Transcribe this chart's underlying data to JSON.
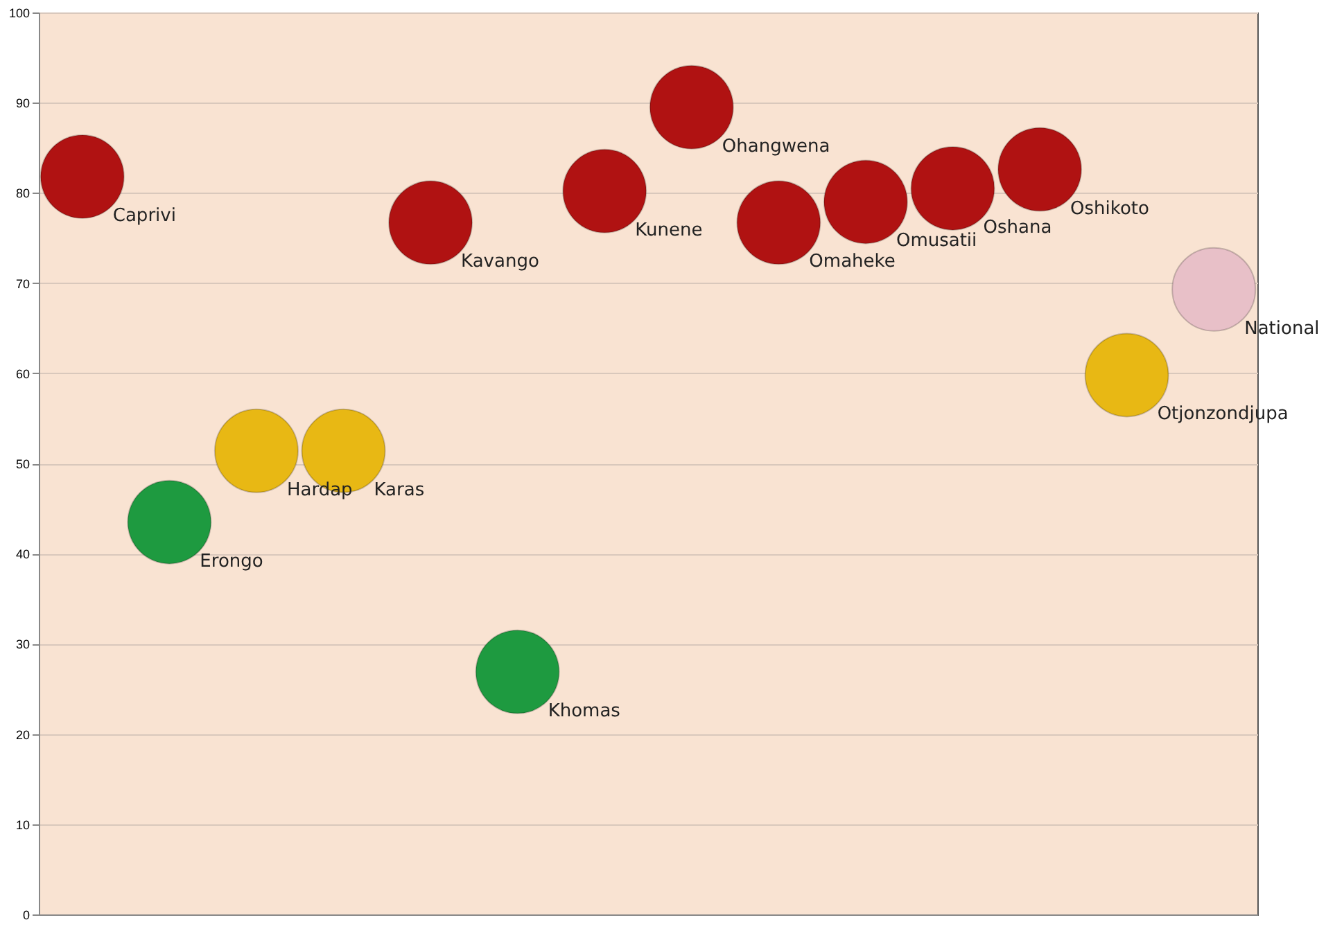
{
  "chart_data": {
    "type": "scatter",
    "categories": [
      null,
      null,
      null,
      null,
      null,
      null,
      null,
      null,
      null,
      null,
      null,
      null,
      null,
      null
    ],
    "ylim": [
      0,
      100
    ],
    "yticks": [
      0,
      10,
      20,
      30,
      40,
      50,
      60,
      70,
      80,
      90,
      100
    ],
    "grid": "y",
    "legend": false,
    "marker": "circle",
    "tick_labels": "y",
    "series": [
      {
        "name": "Caprivi",
        "color": "#b01212",
        "values": [
          81.8,
          null,
          null,
          null,
          null,
          null,
          null,
          null,
          null,
          null,
          null,
          null,
          null,
          null
        ]
      },
      {
        "name": "Erongo",
        "color": "#1e9a40",
        "values": [
          null,
          43.5,
          null,
          null,
          null,
          null,
          null,
          null,
          null,
          null,
          null,
          null,
          null,
          null
        ]
      },
      {
        "name": "Hardap",
        "color": "#e8b814",
        "values": [
          null,
          null,
          51.4,
          null,
          null,
          null,
          null,
          null,
          null,
          null,
          null,
          null,
          null,
          null
        ]
      },
      {
        "name": "Karas",
        "color": "#e8b814",
        "values": [
          null,
          null,
          null,
          51.4,
          null,
          null,
          null,
          null,
          null,
          null,
          null,
          null,
          null,
          null
        ]
      },
      {
        "name": "Kavango",
        "color": "#b01212",
        "values": [
          null,
          null,
          null,
          null,
          76.7,
          null,
          null,
          null,
          null,
          null,
          null,
          null,
          null,
          null
        ]
      },
      {
        "name": "Khomas",
        "color": "#1e9a40",
        "values": [
          null,
          null,
          null,
          null,
          null,
          26.9,
          null,
          null,
          null,
          null,
          null,
          null,
          null,
          null
        ]
      },
      {
        "name": "Kunene",
        "color": "#b01212",
        "values": [
          null,
          null,
          null,
          null,
          null,
          null,
          80.2,
          null,
          null,
          null,
          null,
          null,
          null,
          null
        ]
      },
      {
        "name": "Ohangwena",
        "color": "#b01212",
        "values": [
          null,
          null,
          null,
          null,
          null,
          null,
          null,
          89.5,
          null,
          null,
          null,
          null,
          null,
          null
        ]
      },
      {
        "name": "Omaheke",
        "color": "#b01212",
        "values": [
          null,
          null,
          null,
          null,
          null,
          null,
          null,
          null,
          76.7,
          null,
          null,
          null,
          null,
          null
        ]
      },
      {
        "name": "Omusatii",
        "color": "#b01212",
        "values": [
          null,
          null,
          null,
          null,
          null,
          null,
          null,
          null,
          null,
          79.0,
          null,
          null,
          null,
          null
        ]
      },
      {
        "name": "Oshana",
        "color": "#b01212",
        "values": [
          null,
          null,
          null,
          null,
          null,
          null,
          null,
          null,
          null,
          null,
          80.5,
          null,
          null,
          null
        ]
      },
      {
        "name": "Oshikoto",
        "color": "#b01212",
        "values": [
          null,
          null,
          null,
          null,
          null,
          null,
          null,
          null,
          null,
          null,
          null,
          82.6,
          null,
          null
        ]
      },
      {
        "name": "Otjonzondjupa",
        "color": "#e8b814",
        "values": [
          null,
          null,
          null,
          null,
          null,
          null,
          null,
          null,
          null,
          null,
          null,
          null,
          59.8,
          null
        ]
      },
      {
        "name": "National",
        "color": "#e8c0c8",
        "values": [
          null,
          null,
          null,
          null,
          null,
          null,
          null,
          null,
          null,
          null,
          null,
          null,
          null,
          69.3
        ]
      }
    ]
  }
}
